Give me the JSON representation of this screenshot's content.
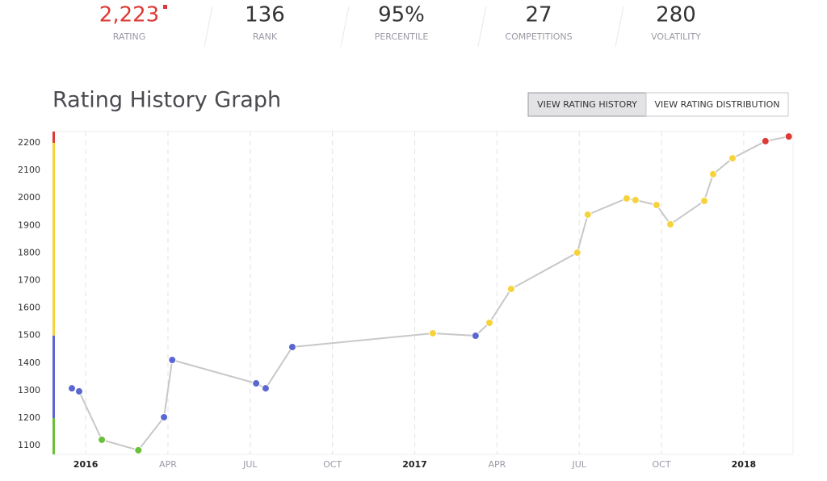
{
  "stats": [
    {
      "value": "2,223",
      "label": "RATING"
    },
    {
      "value": "136",
      "label": "RANK"
    },
    {
      "value": "95%",
      "label": "PERCENTILE"
    },
    {
      "value": "27",
      "label": "COMPETITIONS"
    },
    {
      "value": "280",
      "label": "VOLATILITY"
    }
  ],
  "buttons": [
    "VIEW RATING HISTORY",
    "VIEW RATING DISTRIBUTION"
  ],
  "chart_data": {
    "type": "line",
    "title": "Rating History Graph",
    "x": [
      2015.958,
      2015.98,
      2016.049,
      2016.16,
      2016.238,
      2016.263,
      2016.518,
      2016.547,
      2016.628,
      2017.055,
      2017.185,
      2017.227,
      2017.293,
      2017.494,
      2017.526,
      2017.644,
      2017.671,
      2017.735,
      2017.777,
      2017.88,
      2017.907,
      2017.966,
      2018.066,
      2018.137
    ],
    "values": [
      1308,
      1297,
      1121,
      1083,
      1203,
      1411,
      1326,
      1308,
      1458,
      1508,
      1499,
      1546,
      1669,
      1801,
      1939,
      1998,
      1992,
      1974,
      1904,
      1989,
      2086,
      2144,
      2206,
      2223
    ],
    "line_color": "#c8c8c8",
    "bands": [
      {
        "min": 1068,
        "max": 1200,
        "color": "#69c03a"
      },
      {
        "min": 1200,
        "max": 1500,
        "color": "#5a67d0"
      },
      {
        "min": 1500,
        "max": 2200,
        "color": "#f6d33c"
      },
      {
        "min": 2200,
        "max": 2241,
        "color": "#dd3a35"
      }
    ],
    "xlim": [
      2015.904,
      2018.15
    ],
    "xticks": [
      2016,
      {
        "value": 2016.25,
        "label": "APR"
      },
      {
        "value": 2016.5,
        "label": "JUL"
      },
      {
        "value": 2016.75,
        "label": "OCT"
      },
      2017,
      {
        "value": 2017.25,
        "label": "APR"
      },
      {
        "value": 2017.5,
        "label": "JUL"
      },
      {
        "value": 2017.75,
        "label": "OCT"
      },
      2018
    ],
    "ylim": [
      1068,
      2241
    ],
    "yticks": [
      1100,
      1200,
      1300,
      1400,
      1500,
      1600,
      1700,
      1800,
      1900,
      2000,
      2100,
      2200
    ],
    "grid": "x"
  }
}
